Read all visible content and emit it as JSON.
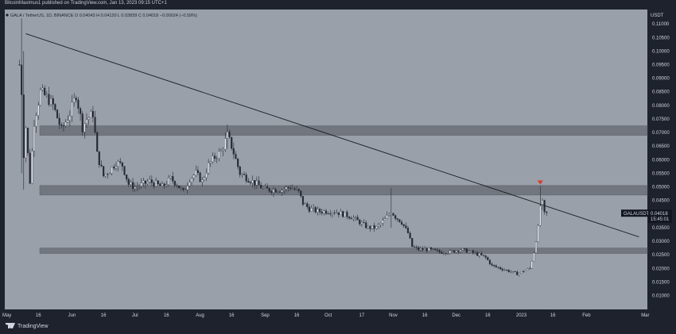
{
  "publisher": "BitcoinMaximus1 published on TradingView.com, Jan 13, 2023 09:15 UTC+1",
  "branding": "TradingView",
  "colors": {
    "background": "#1e222d",
    "plot": "#9aa0aa",
    "candle": "#262a34",
    "zone": "#6a6f78",
    "trendline": "#1b1e25",
    "marker": "#e0362a",
    "price_tag": "#131722"
  },
  "chart_data": {
    "type": "candlestick",
    "legend": {
      "symbol": "GALA / TetherUS, 1D, BINANCE",
      "open": "O 0.04043",
      "high": "H 0.04120",
      "low": "L 0.03839",
      "close": "C 0.04018",
      "change": "−0.00024 (−0.59%)"
    },
    "currency": "USDT",
    "y_ticks": [
      "0.11000",
      "0.10500",
      "0.10000",
      "0.09500",
      "0.09000",
      "0.08500",
      "0.08000",
      "0.07500",
      "0.07000",
      "0.06500",
      "0.06000",
      "0.05500",
      "0.05000",
      "0.04500",
      "0.04000",
      "0.03500",
      "0.03000",
      "0.02500",
      "0.02000",
      "0.01500",
      "0.01000"
    ],
    "y_tick_values": [
      0.11,
      0.105,
      0.1,
      0.095,
      0.09,
      0.085,
      0.08,
      0.075,
      0.07,
      0.065,
      0.06,
      0.055,
      0.05,
      0.045,
      0.04,
      0.035,
      0.03,
      0.025,
      0.02,
      0.015,
      0.01
    ],
    "ylim": [
      0.0049,
      0.1153
    ],
    "x_ticks": [
      {
        "label": "May",
        "date": "2022-05-01"
      },
      {
        "label": "16",
        "date": "2022-05-16"
      },
      {
        "label": "Jun",
        "date": "2022-06-01"
      },
      {
        "label": "16",
        "date": "2022-06-16"
      },
      {
        "label": "Jul",
        "date": "2022-07-01"
      },
      {
        "label": "16",
        "date": "2022-07-16"
      },
      {
        "label": "Aug",
        "date": "2022-08-01"
      },
      {
        "label": "16",
        "date": "2022-08-16"
      },
      {
        "label": "Sep",
        "date": "2022-09-01"
      },
      {
        "label": "16",
        "date": "2022-09-16"
      },
      {
        "label": "Oct",
        "date": "2022-10-01"
      },
      {
        "label": "17",
        "date": "2022-10-17"
      },
      {
        "label": "Nov",
        "date": "2022-11-01"
      },
      {
        "label": "16",
        "date": "2022-11-16"
      },
      {
        "label": "Dec",
        "date": "2022-12-01"
      },
      {
        "label": "16",
        "date": "2022-12-16"
      },
      {
        "label": "2023",
        "date": "2023-01-01"
      },
      {
        "label": "16",
        "date": "2023-01-16"
      },
      {
        "label": "Feb",
        "date": "2023-02-01"
      },
      {
        "label": "Mar",
        "date": "2023-03-01"
      }
    ],
    "xlim": [
      "2022-04-30",
      "2023-03-02"
    ],
    "close_series": [
      {
        "date": "2022-05-07",
        "value": 0.095
      },
      {
        "date": "2022-05-08",
        "value": 0.085
      },
      {
        "date": "2022-05-09",
        "value": 0.062
      },
      {
        "date": "2022-05-10",
        "value": 0.072
      },
      {
        "date": "2022-05-12",
        "value": 0.052
      },
      {
        "date": "2022-05-14",
        "value": 0.074
      },
      {
        "date": "2022-05-17",
        "value": 0.085
      },
      {
        "date": "2022-05-20",
        "value": 0.083
      },
      {
        "date": "2022-05-23",
        "value": 0.08
      },
      {
        "date": "2022-05-27",
        "value": 0.071
      },
      {
        "date": "2022-05-31",
        "value": 0.077
      },
      {
        "date": "2022-06-03",
        "value": 0.084
      },
      {
        "date": "2022-06-06",
        "value": 0.072
      },
      {
        "date": "2022-06-08",
        "value": 0.075
      },
      {
        "date": "2022-06-11",
        "value": 0.077
      },
      {
        "date": "2022-06-13",
        "value": 0.062
      },
      {
        "date": "2022-06-16",
        "value": 0.054
      },
      {
        "date": "2022-06-19",
        "value": 0.056
      },
      {
        "date": "2022-06-22",
        "value": 0.059
      },
      {
        "date": "2022-06-25",
        "value": 0.058
      },
      {
        "date": "2022-06-28",
        "value": 0.051
      },
      {
        "date": "2022-07-01",
        "value": 0.05
      },
      {
        "date": "2022-07-05",
        "value": 0.051
      },
      {
        "date": "2022-07-08",
        "value": 0.052
      },
      {
        "date": "2022-07-11",
        "value": 0.051
      },
      {
        "date": "2022-07-14",
        "value": 0.05
      },
      {
        "date": "2022-07-18",
        "value": 0.053
      },
      {
        "date": "2022-07-21",
        "value": 0.051
      },
      {
        "date": "2022-07-24",
        "value": 0.048
      },
      {
        "date": "2022-07-27",
        "value": 0.053
      },
      {
        "date": "2022-07-30",
        "value": 0.055
      },
      {
        "date": "2022-08-02",
        "value": 0.052
      },
      {
        "date": "2022-08-05",
        "value": 0.058
      },
      {
        "date": "2022-08-08",
        "value": 0.061
      },
      {
        "date": "2022-08-11",
        "value": 0.063
      },
      {
        "date": "2022-08-14",
        "value": 0.069
      },
      {
        "date": "2022-08-16",
        "value": 0.065
      },
      {
        "date": "2022-08-18",
        "value": 0.06
      },
      {
        "date": "2022-08-20",
        "value": 0.055
      },
      {
        "date": "2022-08-24",
        "value": 0.053
      },
      {
        "date": "2022-08-28",
        "value": 0.051
      },
      {
        "date": "2022-09-01",
        "value": 0.049
      },
      {
        "date": "2022-09-05",
        "value": 0.049
      },
      {
        "date": "2022-09-09",
        "value": 0.049
      },
      {
        "date": "2022-09-13",
        "value": 0.05
      },
      {
        "date": "2022-09-17",
        "value": 0.048
      },
      {
        "date": "2022-09-19",
        "value": 0.044
      },
      {
        "date": "2022-09-22",
        "value": 0.042
      },
      {
        "date": "2022-09-26",
        "value": 0.041
      },
      {
        "date": "2022-09-30",
        "value": 0.041
      },
      {
        "date": "2022-10-04",
        "value": 0.041
      },
      {
        "date": "2022-10-08",
        "value": 0.04
      },
      {
        "date": "2022-10-12",
        "value": 0.039
      },
      {
        "date": "2022-10-16",
        "value": 0.037
      },
      {
        "date": "2022-10-20",
        "value": 0.035
      },
      {
        "date": "2022-10-24",
        "value": 0.035
      },
      {
        "date": "2022-10-28",
        "value": 0.038
      },
      {
        "date": "2022-10-31",
        "value": 0.041
      },
      {
        "date": "2022-11-02",
        "value": 0.039
      },
      {
        "date": "2022-11-05",
        "value": 0.037
      },
      {
        "date": "2022-11-08",
        "value": 0.033
      },
      {
        "date": "2022-11-10",
        "value": 0.028
      },
      {
        "date": "2022-11-13",
        "value": 0.027
      },
      {
        "date": "2022-11-18",
        "value": 0.027
      },
      {
        "date": "2022-11-23",
        "value": 0.026
      },
      {
        "date": "2022-11-28",
        "value": 0.026
      },
      {
        "date": "2022-12-03",
        "value": 0.027
      },
      {
        "date": "2022-12-08",
        "value": 0.026
      },
      {
        "date": "2022-12-12",
        "value": 0.025
      },
      {
        "date": "2022-12-15",
        "value": 0.024
      },
      {
        "date": "2022-12-18",
        "value": 0.021
      },
      {
        "date": "2022-12-22",
        "value": 0.02
      },
      {
        "date": "2022-12-26",
        "value": 0.019
      },
      {
        "date": "2022-12-30",
        "value": 0.018
      },
      {
        "date": "2023-01-02",
        "value": 0.019
      },
      {
        "date": "2023-01-05",
        "value": 0.02
      },
      {
        "date": "2023-01-07",
        "value": 0.026
      },
      {
        "date": "2023-01-09",
        "value": 0.035
      },
      {
        "date": "2023-01-10",
        "value": 0.043
      },
      {
        "date": "2023-01-11",
        "value": 0.044
      },
      {
        "date": "2023-01-12",
        "value": 0.04
      },
      {
        "date": "2023-01-13",
        "value": 0.04018
      }
    ],
    "high_spikes": [
      {
        "date": "2022-05-06",
        "high": 0.113,
        "low": 0.05
      },
      {
        "date": "2022-05-08",
        "high": 0.112,
        "low": 0.055
      },
      {
        "date": "2022-05-09",
        "high": 0.1,
        "low": 0.049
      },
      {
        "date": "2022-08-14",
        "high": 0.073,
        "low": 0.064
      },
      {
        "date": "2022-10-31",
        "high": 0.0495,
        "low": 0.035
      },
      {
        "date": "2023-01-10",
        "high": 0.0503,
        "low": 0.036
      }
    ],
    "resistance_zones": [
      {
        "from": 0.069,
        "to": 0.0725
      },
      {
        "from": 0.047,
        "to": 0.0505
      },
      {
        "from": 0.0255,
        "to": 0.0275
      }
    ],
    "trendline": {
      "start": {
        "date": "2022-05-10",
        "value": 0.1064
      },
      "end": {
        "date": "2023-02-26",
        "value": 0.0316
      }
    },
    "marker": {
      "date": "2023-01-10",
      "value": 0.0515,
      "shape": "down-triangle"
    },
    "price_tag": {
      "label": "GALAUSDT",
      "value": "0.04018",
      "countdown": "15:45:01",
      "price": 0.04018
    }
  }
}
